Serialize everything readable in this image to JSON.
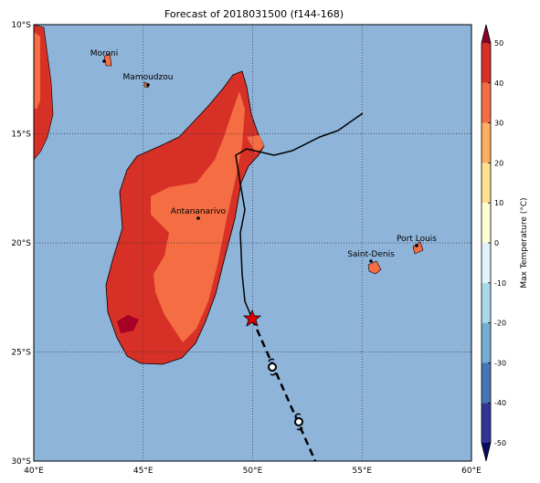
{
  "map": {
    "title": "Forecast of 2018031500 (f144-168)",
    "xlim": [
      40,
      60
    ],
    "ylim": [
      -30,
      -10
    ],
    "xticks": [
      {
        "value": 40,
        "label": "40°E"
      },
      {
        "value": 45,
        "label": "45°E"
      },
      {
        "value": 50,
        "label": "50°E"
      },
      {
        "value": 55,
        "label": "55°E"
      },
      {
        "value": 60,
        "label": "60°E"
      }
    ],
    "yticks": [
      {
        "value": -10,
        "label": "10°S"
      },
      {
        "value": -15,
        "label": "15°S"
      },
      {
        "value": -20,
        "label": "20°S"
      },
      {
        "value": -25,
        "label": "25°S"
      },
      {
        "value": -30,
        "label": "30°S"
      }
    ],
    "cities": [
      "Moroni",
      "Mamoudzou",
      "Antananarivo",
      "Saint-Denis",
      "Port Louis"
    ],
    "colorbar": {
      "label": "Max Temperature (°C)",
      "lim": [
        -50,
        50
      ],
      "ticks": [
        -50,
        -40,
        -30,
        -20,
        -10,
        0,
        10,
        20,
        30,
        40,
        50
      ],
      "colors": [
        "#313695",
        "#4575b4",
        "#74add1",
        "#abd9e9",
        "#e0f3f8",
        "#fefed6",
        "#fee090",
        "#fdae61",
        "#f46d43",
        "#d73027"
      ],
      "under_color": "#0b0b60",
      "over_color": "#8b0026"
    }
  }
}
